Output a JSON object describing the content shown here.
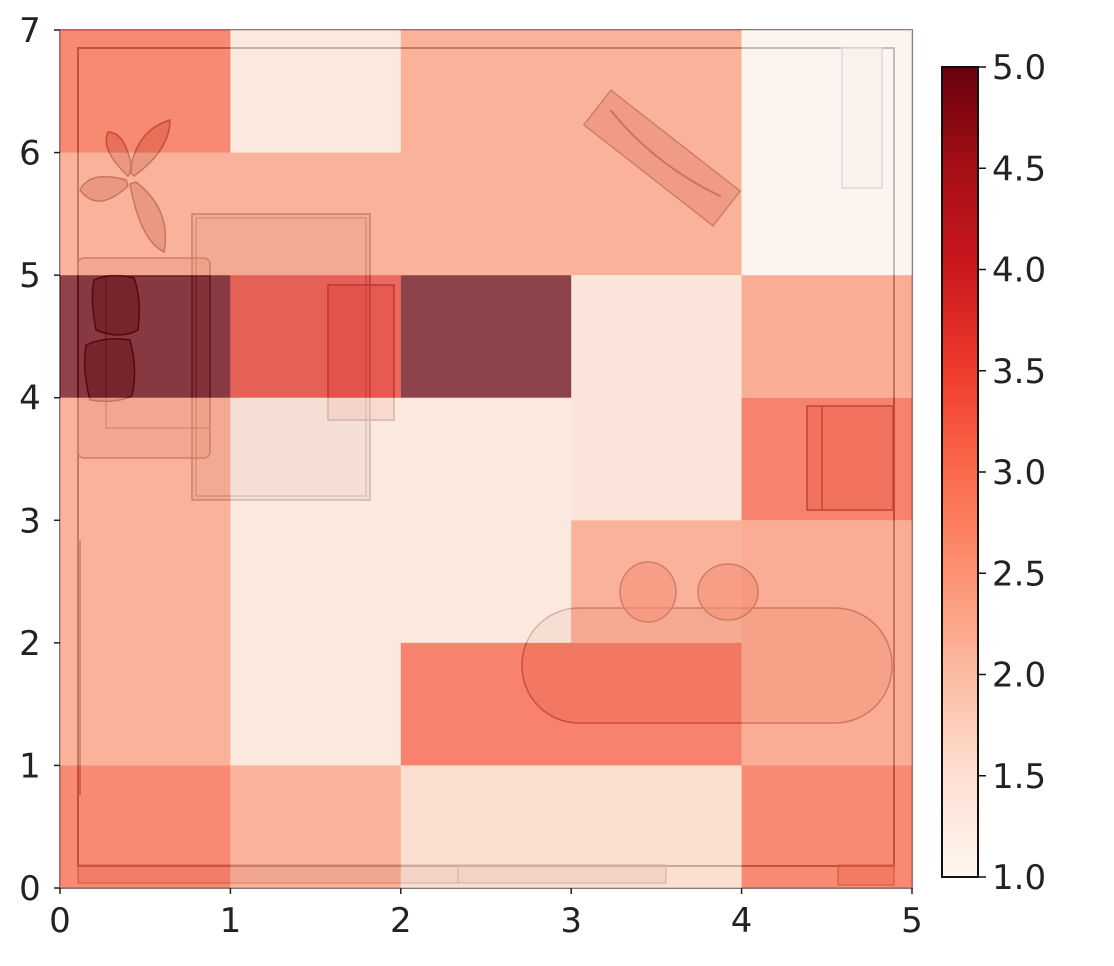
{
  "chart_data": {
    "type": "heatmap",
    "title": "",
    "xlabel": "",
    "ylabel": "",
    "x_edges": [
      0,
      1,
      2,
      3,
      4,
      5
    ],
    "y_edges": [
      0,
      1,
      2,
      3,
      4,
      5,
      6,
      7
    ],
    "xlim": [
      0,
      5
    ],
    "ylim": [
      0,
      7
    ],
    "x_ticks": [
      "0",
      "1",
      "2",
      "3",
      "4",
      "5"
    ],
    "y_ticks": [
      "0",
      "1",
      "2",
      "3",
      "4",
      "5",
      "6",
      "7"
    ],
    "cells": [
      {
        "x": [
          0,
          1
        ],
        "y": [
          0,
          1
        ],
        "value": 3.1
      },
      {
        "x": [
          1,
          2
        ],
        "y": [
          0,
          1
        ],
        "value": 2.4
      },
      {
        "x": [
          2,
          4
        ],
        "y": [
          0,
          1
        ],
        "value": 1.6
      },
      {
        "x": [
          4,
          5
        ],
        "y": [
          0,
          1
        ],
        "value": 3.1
      },
      {
        "x": [
          0,
          1
        ],
        "y": [
          1,
          4
        ],
        "value": 2.4
      },
      {
        "x": [
          1,
          2
        ],
        "y": [
          1,
          4
        ],
        "value": 1.4
      },
      {
        "x": [
          2,
          3
        ],
        "y": [
          2,
          4
        ],
        "value": 1.4
      },
      {
        "x": [
          3,
          4
        ],
        "y": [
          2,
          3
        ],
        "value": 2.4
      },
      {
        "x": [
          2,
          4
        ],
        "y": [
          1,
          2
        ],
        "value": 3.2
      },
      {
        "x": [
          3,
          4
        ],
        "y": [
          3,
          5
        ],
        "value": 1.5
      },
      {
        "x": [
          4,
          5
        ],
        "y": [
          1,
          3
        ],
        "value": 2.5
      },
      {
        "x": [
          4,
          5
        ],
        "y": [
          3,
          4
        ],
        "value": 3.2
      },
      {
        "x": [
          4,
          5
        ],
        "y": [
          4,
          5
        ],
        "value": 2.5
      },
      {
        "x": [
          0,
          1
        ],
        "y": [
          4,
          5
        ],
        "value": 5.0
      },
      {
        "x": [
          1,
          2
        ],
        "y": [
          4,
          5
        ],
        "value": 3.6
      },
      {
        "x": [
          2,
          3
        ],
        "y": [
          4,
          5
        ],
        "value": 5.0
      },
      {
        "x": [
          0,
          1
        ],
        "y": [
          5,
          6
        ],
        "value": 2.4
      },
      {
        "x": [
          1,
          4
        ],
        "y": [
          5,
          6
        ],
        "value": 2.4
      },
      {
        "x": [
          0,
          1
        ],
        "y": [
          6,
          7
        ],
        "value": 3.1
      },
      {
        "x": [
          1,
          2
        ],
        "y": [
          6,
          7
        ],
        "value": 1.4
      },
      {
        "x": [
          2,
          4
        ],
        "y": [
          6,
          7
        ],
        "value": 2.4
      },
      {
        "x": [
          4,
          5
        ],
        "y": [
          5,
          7
        ],
        "value": 1.0
      }
    ],
    "colorbar": {
      "colormap": "Reds",
      "range": [
        1.0,
        5.0
      ],
      "ticks": [
        "1.0",
        "1.5",
        "2.0",
        "2.5",
        "3.0",
        "3.5",
        "4.0",
        "4.5",
        "5.0"
      ],
      "stops": [
        "#fff5f0",
        "#fee0d2",
        "#fcbba1",
        "#fc9272",
        "#fb6a4a",
        "#ef3b2c",
        "#cb181d",
        "#a50f15",
        "#67000d"
      ]
    },
    "grid": false,
    "background": "floor plan (sofa, coffee table rug, plant, bench, desk, wardrobe, dining table with two chairs)"
  }
}
